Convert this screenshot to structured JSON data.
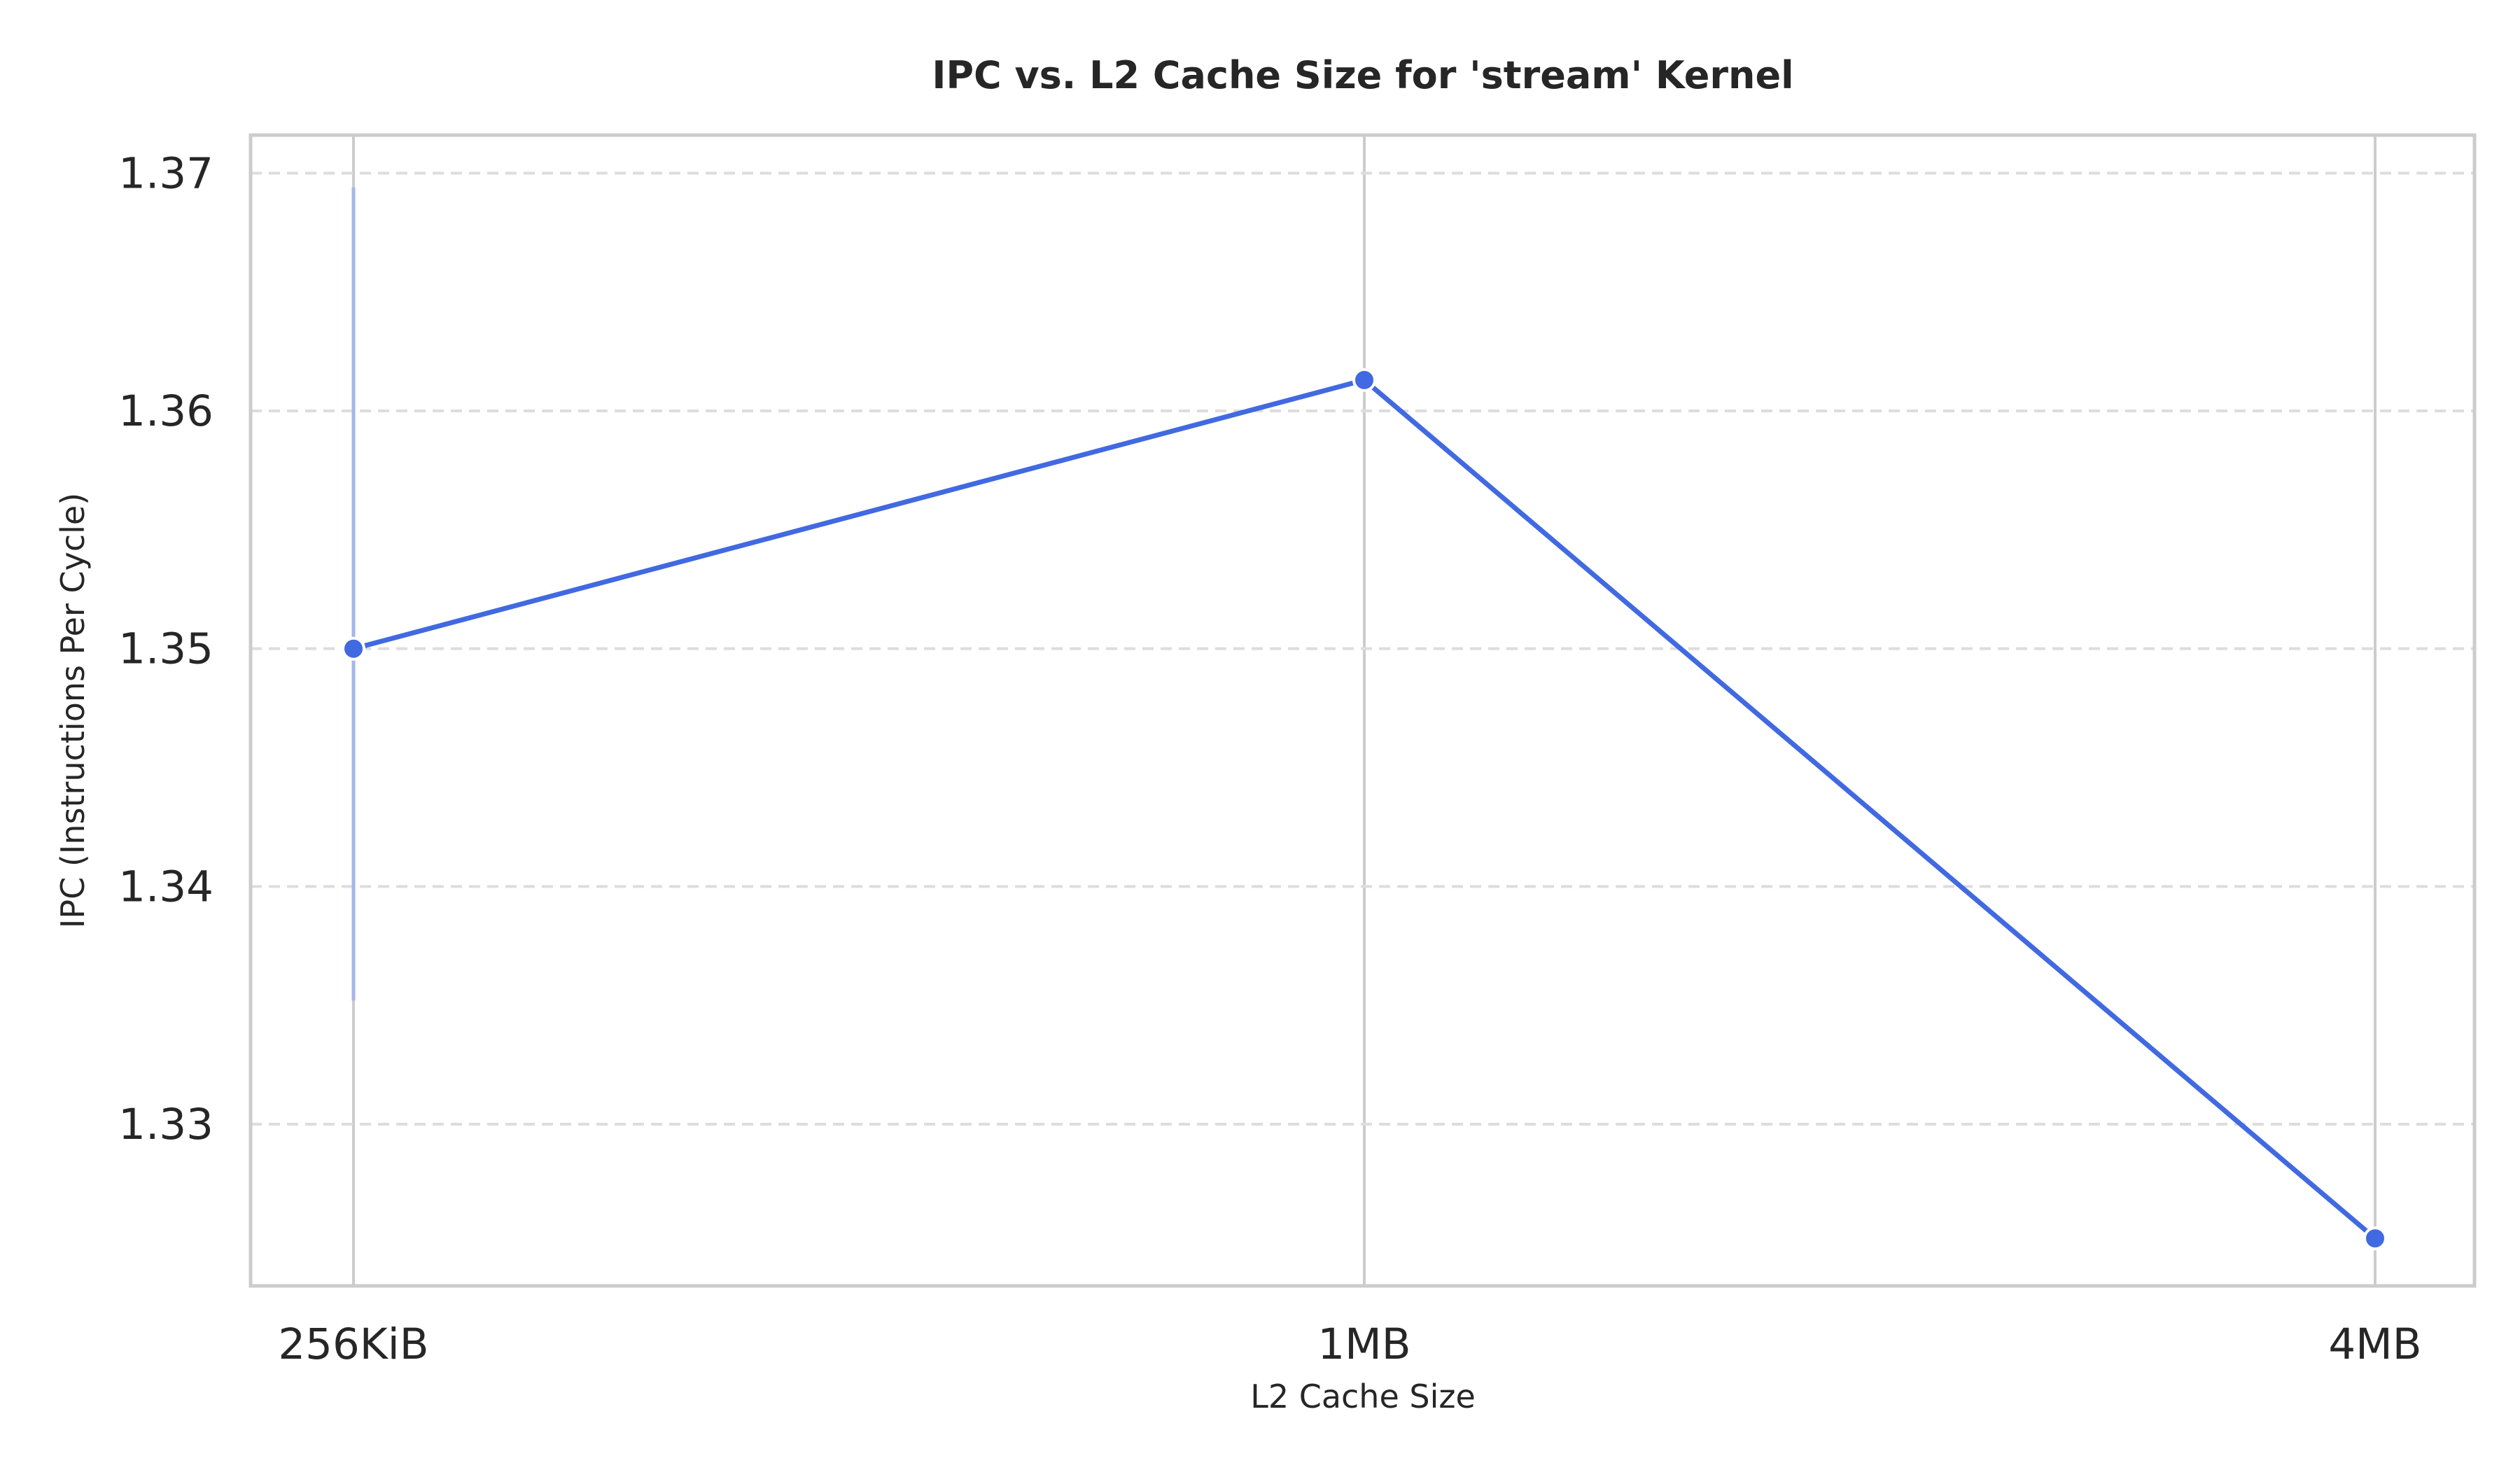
{
  "chart_data": {
    "type": "line",
    "title": "IPC vs. L2 Cache Size for 'stream' Kernel",
    "xlabel": "L2 Cache Size",
    "ylabel": "IPC (Instructions Per Cycle)",
    "categories": [
      "256KiB",
      "1MB",
      "4MB"
    ],
    "series": [
      {
        "values": [
          1.35,
          1.3613,
          1.3252
        ],
        "error_low": [
          1.3352,
          null,
          null
        ],
        "error_high": [
          1.3694,
          null,
          null
        ]
      }
    ],
    "yticks": [
      "1.33",
      "1.34",
      "1.35",
      "1.36",
      "1.37"
    ],
    "ylim": [
      1.3232,
      1.3716
    ],
    "grid": {
      "x": "solid",
      "y": "dashed"
    },
    "legend": "none",
    "colors": {
      "line": "#4169E1",
      "marker_edge": "#ffffff",
      "error_bar": "#A5B6EB",
      "grid_x": "#CCCCCC",
      "grid_y": "#DDDDDD",
      "axes_frame": "#CCCCCC",
      "text": "#262626"
    }
  }
}
